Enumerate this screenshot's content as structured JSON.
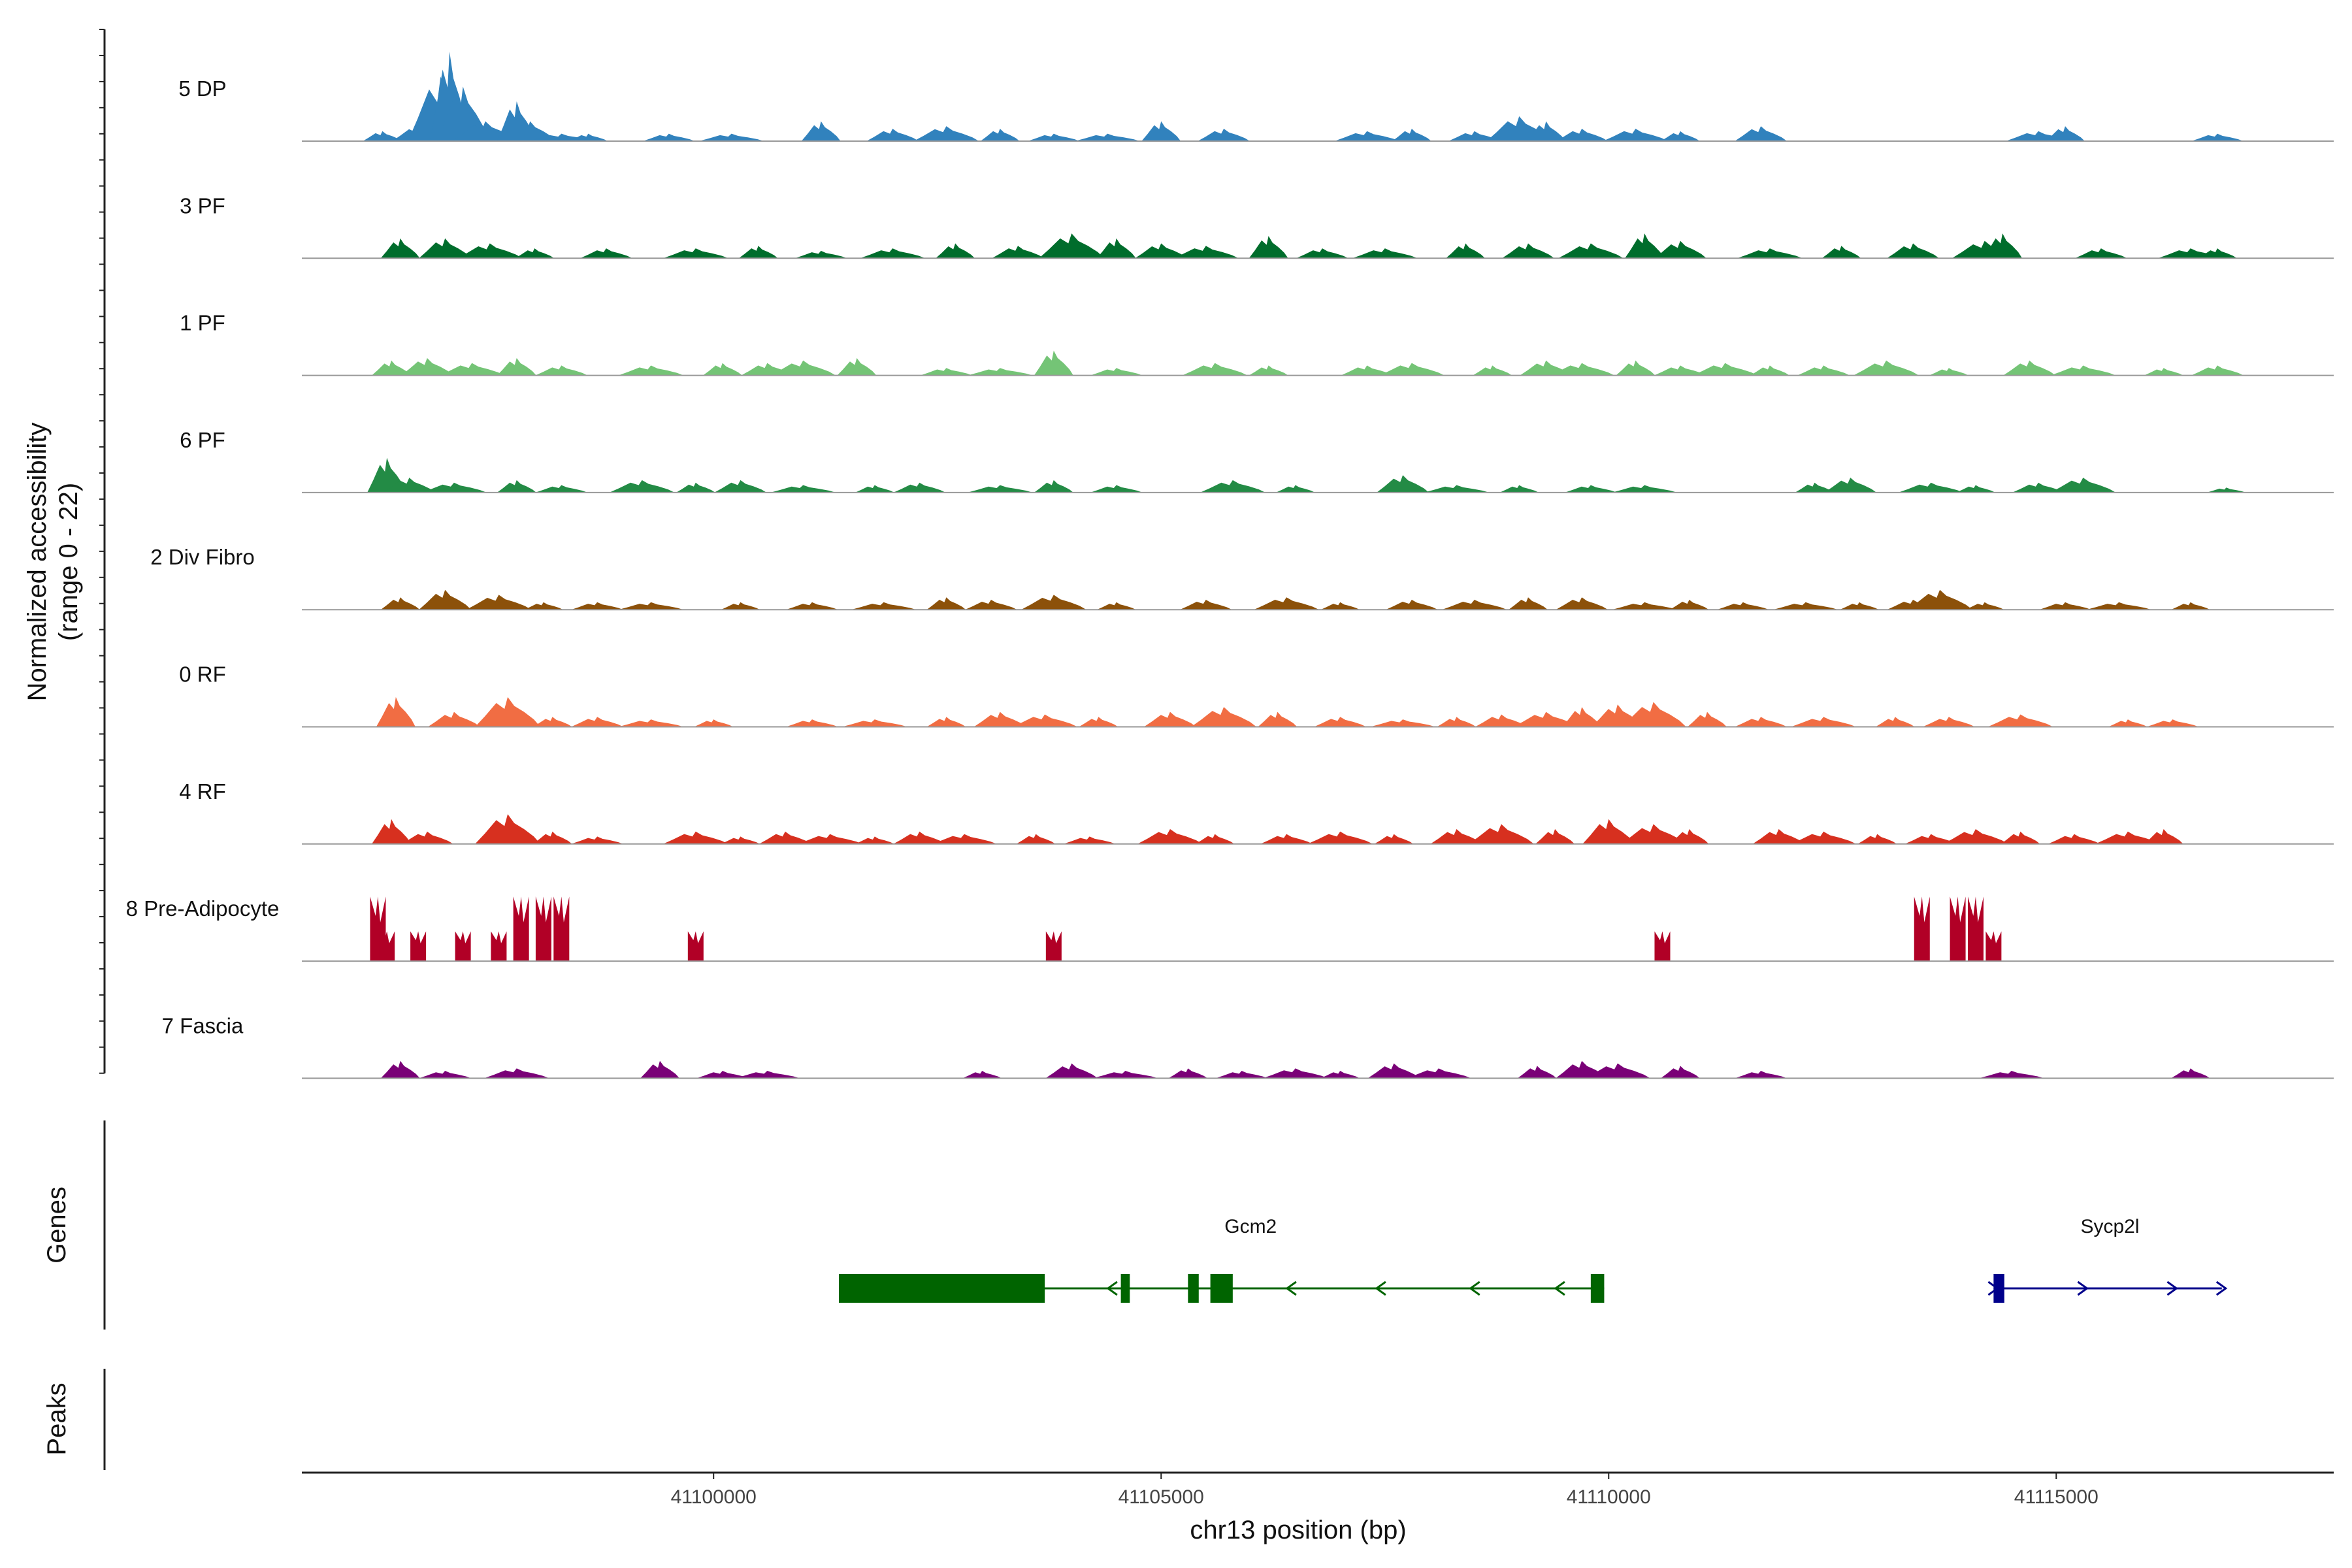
{
  "chart_data": {
    "type": "area",
    "title": "",
    "ylabel": "Normalized accessibility",
    "ylabel_range": "(range 0 - 22)",
    "yrange": [
      0,
      22
    ],
    "xlabel": "chr13 position (bp)",
    "xlim": [
      41095400,
      41118100
    ],
    "x_ticks": [
      41100000,
      41105000,
      41110000,
      41115000
    ],
    "x_tick_labels": [
      "41100000",
      "41105000",
      "41110000",
      "41115000"
    ],
    "series": [
      {
        "name": "5 DP",
        "color": "#3182bd",
        "peaks": [
          [
            41096300,
            2
          ],
          [
            41096700,
            3
          ],
          [
            41096950,
            13
          ],
          [
            41097050,
            18
          ],
          [
            41097200,
            11
          ],
          [
            41097450,
            4
          ],
          [
            41097800,
            8
          ],
          [
            41097950,
            4
          ],
          [
            41098300,
            1.5
          ],
          [
            41098600,
            1.5
          ],
          [
            41099500,
            1.5
          ],
          [
            41100200,
            1.5
          ],
          [
            41101200,
            4
          ],
          [
            41102000,
            2.5
          ],
          [
            41102600,
            3
          ],
          [
            41103200,
            2.5
          ],
          [
            41103800,
            1.5
          ],
          [
            41104400,
            1.5
          ],
          [
            41105000,
            4
          ],
          [
            41105700,
            2.5
          ],
          [
            41107300,
            2
          ],
          [
            41107800,
            2.5
          ],
          [
            41108500,
            2
          ],
          [
            41109000,
            5
          ],
          [
            41109300,
            4
          ],
          [
            41109700,
            2.5
          ],
          [
            41110300,
            2.5
          ],
          [
            41110800,
            2
          ],
          [
            41111700,
            3
          ],
          [
            41114800,
            2
          ],
          [
            41115100,
            3
          ],
          [
            41116800,
            1.5
          ]
        ]
      },
      {
        "name": "3 PF",
        "color": "#006d2c",
        "peaks": [
          [
            41096500,
            4
          ],
          [
            41097000,
            4
          ],
          [
            41097500,
            3
          ],
          [
            41098000,
            2
          ],
          [
            41098800,
            2
          ],
          [
            41099800,
            2
          ],
          [
            41100500,
            2.5
          ],
          [
            41101200,
            1.5
          ],
          [
            41102000,
            2
          ],
          [
            41102700,
            3
          ],
          [
            41103400,
            2.5
          ],
          [
            41104000,
            5
          ],
          [
            41104500,
            4
          ],
          [
            41105000,
            3
          ],
          [
            41105500,
            2.5
          ],
          [
            41106200,
            4.5
          ],
          [
            41106800,
            2
          ],
          [
            41107500,
            2
          ],
          [
            41108400,
            3
          ],
          [
            41109100,
            3
          ],
          [
            41109800,
            3
          ],
          [
            41110400,
            5
          ],
          [
            41110800,
            3.5
          ],
          [
            41111800,
            2
          ],
          [
            41112600,
            2.5
          ],
          [
            41113400,
            3
          ],
          [
            41114200,
            3.5
          ],
          [
            41114400,
            5
          ],
          [
            41115500,
            2
          ],
          [
            41116500,
            2
          ],
          [
            41116800,
            2
          ]
        ]
      },
      {
        "name": "1 PF",
        "color": "#74c476",
        "peaks": [
          [
            41096400,
            3
          ],
          [
            41096800,
            3.5
          ],
          [
            41097300,
            2.5
          ],
          [
            41097800,
            3.5
          ],
          [
            41098300,
            2
          ],
          [
            41099300,
            2
          ],
          [
            41100100,
            2.5
          ],
          [
            41100600,
            2.5
          ],
          [
            41101000,
            3
          ],
          [
            41101600,
            3.5
          ],
          [
            41102600,
            1.5
          ],
          [
            41103200,
            1.5
          ],
          [
            41103800,
            5
          ],
          [
            41104500,
            1.5
          ],
          [
            41105600,
            2.5
          ],
          [
            41106200,
            2
          ],
          [
            41107300,
            2
          ],
          [
            41107800,
            2.5
          ],
          [
            41108700,
            2
          ],
          [
            41109300,
            3
          ],
          [
            41109700,
            2.5
          ],
          [
            41110300,
            3
          ],
          [
            41110800,
            2
          ],
          [
            41111300,
            2.5
          ],
          [
            41111800,
            2
          ],
          [
            41112400,
            2
          ],
          [
            41113100,
            3
          ],
          [
            41113800,
            1.5
          ],
          [
            41114700,
            3
          ],
          [
            41115300,
            2
          ],
          [
            41116200,
            1.5
          ],
          [
            41116800,
            2
          ]
        ]
      },
      {
        "name": "6 PF",
        "color": "#238b45",
        "peaks": [
          [
            41096350,
            7
          ],
          [
            41096600,
            3
          ],
          [
            41097100,
            2
          ],
          [
            41097800,
            2.5
          ],
          [
            41098300,
            1.5
          ],
          [
            41099200,
            2.5
          ],
          [
            41099800,
            2
          ],
          [
            41100300,
            2.5
          ],
          [
            41101000,
            1.5
          ],
          [
            41101800,
            1.5
          ],
          [
            41102300,
            2
          ],
          [
            41103200,
            1.5
          ],
          [
            41103800,
            2.5
          ],
          [
            41104500,
            1.5
          ],
          [
            41105800,
            2.5
          ],
          [
            41106500,
            1.5
          ],
          [
            41107700,
            3.5
          ],
          [
            41108300,
            1.5
          ],
          [
            41109000,
            1.5
          ],
          [
            41109800,
            1.5
          ],
          [
            41110400,
            1.5
          ],
          [
            41112300,
            2
          ],
          [
            41112700,
            3
          ],
          [
            41113600,
            2
          ],
          [
            41114100,
            1.5
          ],
          [
            41114800,
            2
          ],
          [
            41115300,
            3
          ],
          [
            41116900,
            1
          ]
        ]
      },
      {
        "name": "2 Div Fibro",
        "color": "#8c510a",
        "peaks": [
          [
            41096500,
            2.5
          ],
          [
            41097000,
            4
          ],
          [
            41097600,
            3
          ],
          [
            41098100,
            1.5
          ],
          [
            41098700,
            1.5
          ],
          [
            41099300,
            1.5
          ],
          [
            41100300,
            1.5
          ],
          [
            41101100,
            1.5
          ],
          [
            41101900,
            1.5
          ],
          [
            41102600,
            2.5
          ],
          [
            41103100,
            2
          ],
          [
            41103800,
            3
          ],
          [
            41104500,
            1.5
          ],
          [
            41105500,
            2
          ],
          [
            41106400,
            2.5
          ],
          [
            41107000,
            1.5
          ],
          [
            41107800,
            2
          ],
          [
            41108500,
            2
          ],
          [
            41109100,
            2.5
          ],
          [
            41109700,
            2.5
          ],
          [
            41110400,
            1.5
          ],
          [
            41110900,
            2
          ],
          [
            41111500,
            1.5
          ],
          [
            41112200,
            1.5
          ],
          [
            41112800,
            1.5
          ],
          [
            41113400,
            2
          ],
          [
            41113700,
            4
          ],
          [
            41114200,
            1.5
          ],
          [
            41115100,
            1.5
          ],
          [
            41115700,
            1.5
          ],
          [
            41116500,
            1.5
          ]
        ]
      },
      {
        "name": "0 RF",
        "color": "#f16d43",
        "peaks": [
          [
            41096450,
            6
          ],
          [
            41097100,
            3
          ],
          [
            41097700,
            6
          ],
          [
            41098200,
            2
          ],
          [
            41098700,
            2
          ],
          [
            41099300,
            1.5
          ],
          [
            41100000,
            1.5
          ],
          [
            41101100,
            1.5
          ],
          [
            41101800,
            1.5
          ],
          [
            41102600,
            2
          ],
          [
            41103200,
            3
          ],
          [
            41103700,
            2.5
          ],
          [
            41104300,
            2
          ],
          [
            41105100,
            3
          ],
          [
            41105700,
            4
          ],
          [
            41106300,
            3
          ],
          [
            41107000,
            2
          ],
          [
            41107700,
            1.5
          ],
          [
            41108300,
            2
          ],
          [
            41108800,
            2.5
          ],
          [
            41109300,
            3
          ],
          [
            41109700,
            4
          ],
          [
            41110100,
            4.5
          ],
          [
            41110500,
            5
          ],
          [
            41111100,
            3
          ],
          [
            41111700,
            2
          ],
          [
            41112400,
            2
          ],
          [
            41113200,
            2
          ],
          [
            41113800,
            2
          ],
          [
            41114600,
            2.5
          ],
          [
            41115800,
            1.5
          ],
          [
            41116300,
            1.5
          ]
        ]
      },
      {
        "name": "4 RF",
        "color": "#d7301f",
        "peaks": [
          [
            41096400,
            5
          ],
          [
            41096800,
            2.5
          ],
          [
            41097700,
            6
          ],
          [
            41098200,
            2.5
          ],
          [
            41098700,
            1.5
          ],
          [
            41099800,
            2.5
          ],
          [
            41100300,
            1.5
          ],
          [
            41100800,
            2.5
          ],
          [
            41101300,
            2
          ],
          [
            41101800,
            1.5
          ],
          [
            41102300,
            2.5
          ],
          [
            41102800,
            2
          ],
          [
            41103600,
            2
          ],
          [
            41104200,
            1.5
          ],
          [
            41105100,
            3
          ],
          [
            41105600,
            2
          ],
          [
            41106400,
            2
          ],
          [
            41107000,
            2.5
          ],
          [
            41107600,
            2
          ],
          [
            41108300,
            3
          ],
          [
            41108800,
            4
          ],
          [
            41109400,
            3
          ],
          [
            41110000,
            5
          ],
          [
            41110500,
            4
          ],
          [
            41110900,
            3
          ],
          [
            41111900,
            3
          ],
          [
            41112400,
            2.5
          ],
          [
            41113000,
            2
          ],
          [
            41113600,
            2
          ],
          [
            41114100,
            3
          ],
          [
            41114600,
            2.5
          ],
          [
            41115200,
            2
          ],
          [
            41115800,
            2.5
          ],
          [
            41116200,
            3
          ]
        ]
      },
      {
        "name": "8 Pre-Adipocyte",
        "color": "#b10026",
        "peaks": [
          [
            41096250,
            13
          ],
          [
            41096350,
            6
          ],
          [
            41096700,
            6
          ],
          [
            41097200,
            6
          ],
          [
            41097600,
            6
          ],
          [
            41097850,
            13
          ],
          [
            41098100,
            13
          ],
          [
            41098300,
            13
          ],
          [
            41099800,
            6
          ],
          [
            41103800,
            6
          ],
          [
            41110600,
            6
          ],
          [
            41113500,
            13
          ],
          [
            41113900,
            13
          ],
          [
            41114100,
            13
          ],
          [
            41114300,
            6
          ]
        ]
      },
      {
        "name": "7 Fascia",
        "color": "#7a0177",
        "peaks": [
          [
            41096500,
            3.5
          ],
          [
            41097000,
            1.5
          ],
          [
            41097800,
            2
          ],
          [
            41099400,
            3.5
          ],
          [
            41100100,
            1.5
          ],
          [
            41100600,
            1.5
          ],
          [
            41103000,
            1.5
          ],
          [
            41104000,
            3
          ],
          [
            41104600,
            1.5
          ],
          [
            41105300,
            2
          ],
          [
            41105900,
            1.5
          ],
          [
            41106500,
            2
          ],
          [
            41107000,
            1.5
          ],
          [
            41107600,
            3
          ],
          [
            41108100,
            2
          ],
          [
            41109200,
            2.5
          ],
          [
            41109700,
            3.5
          ],
          [
            41110100,
            3
          ],
          [
            41110800,
            2.5
          ],
          [
            41111700,
            1.5
          ],
          [
            41114500,
            1.5
          ],
          [
            41116500,
            2
          ]
        ]
      }
    ],
    "genes": {
      "track_title": "Genes",
      "items": [
        {
          "name": "Gcm2",
          "color": "#006400",
          "strand": "-",
          "start": 41101400,
          "end": 41109950,
          "exons": [
            [
              41101400,
              41103700
            ],
            [
              41104550,
              41104650
            ],
            [
              41105300,
              41105420
            ],
            [
              41105550,
              41105800
            ],
            [
              41109800,
              41109950
            ]
          ],
          "arrows": [
            41104450,
            41106450,
            41107450,
            41108500,
            41109450
          ]
        },
        {
          "name": "Sycp2l",
          "color": "#00008b",
          "strand": "+",
          "start": 41114300,
          "end": 41116850,
          "exons": [
            [
              41114300,
              41114420
            ]
          ],
          "arrows": [
            41114300,
            41115300,
            41116300,
            41116850
          ]
        }
      ]
    },
    "peaks_track": {
      "title": "Peaks",
      "items": []
    }
  }
}
